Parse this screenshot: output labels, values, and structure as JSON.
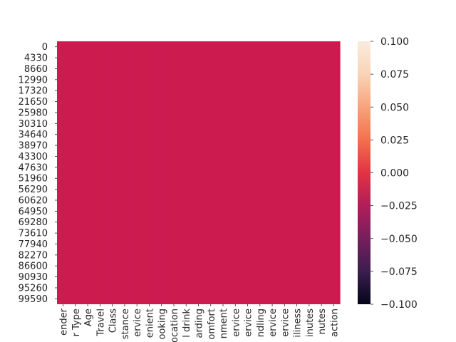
{
  "chart_data": {
    "type": "heatmap",
    "title": "",
    "xlabel": "",
    "ylabel": "",
    "x_tick_labels": [
      "ender",
      "r Type",
      "Age",
      "Travel",
      "Class",
      "stance",
      "ervice",
      "enient",
      "ooking",
      "ocation",
      "l drink",
      "arding",
      "omfort",
      "nment",
      "ervice",
      "ervice",
      "ndling",
      "ervice",
      "ervice",
      "iliness",
      "inutes",
      "nutes",
      "action"
    ],
    "y_tick_labels": [
      "0",
      "4330",
      "8660",
      "12990",
      "17320",
      "21650",
      "25980",
      "30310",
      "34640",
      "38970",
      "43300",
      "47630",
      "51960",
      "56290",
      "60620",
      "64950",
      "69280",
      "73610",
      "77940",
      "82270",
      "86600",
      "90930",
      "95260",
      "99590"
    ],
    "rows": 103904,
    "row_step": 4330,
    "cell_value": 0.0,
    "cell_color": "#cb1b4f",
    "colorbar": {
      "range": [
        -0.1,
        0.1
      ],
      "ticks": [
        "0.100",
        "0.075",
        "0.050",
        "0.025",
        "0.000",
        "−0.025",
        "−0.050",
        "−0.075",
        "−0.100"
      ],
      "tick_values": [
        0.1,
        0.075,
        0.05,
        0.025,
        0.0,
        -0.025,
        -0.05,
        -0.075,
        -0.1
      ],
      "colormap": "rocket",
      "stops": [
        "#03051a",
        "#3b1e4e",
        "#761f5d",
        "#b11e5a",
        "#e13342",
        "#f3704d",
        "#f6a47c",
        "#f9d4b5",
        "#faebdd"
      ]
    }
  }
}
